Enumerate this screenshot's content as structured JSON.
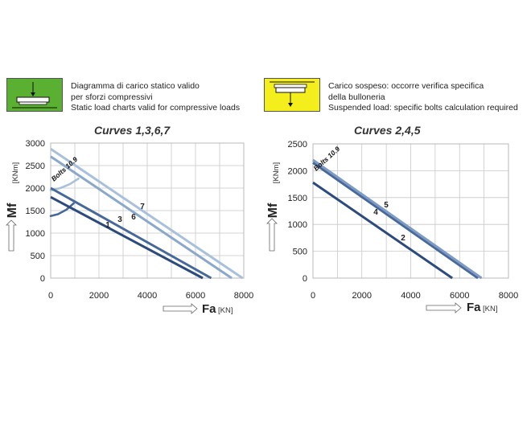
{
  "legend": {
    "green": {
      "line1": "Diagramma di carico statico valido",
      "line2": "per sforzi compressivi",
      "line3": "Static load charts valid for compressive loads",
      "color": "#5ab030"
    },
    "yellow": {
      "line1": "Carico sospeso: occorre verifica specifica",
      "line2": "della bulloneria",
      "line3": "Suspended load:  specific bolts calculation required",
      "color": "#f4ee1c"
    }
  },
  "chart_data": [
    {
      "type": "line",
      "title": "Curves 1,3,6,7",
      "ylabel": "Mf",
      "yunit": "[KNm]",
      "xlabel": "Fa",
      "xunit": "[KN]",
      "xlim": [
        0,
        8000
      ],
      "ylim": [
        0,
        3000
      ],
      "xticks": [
        0,
        2000,
        4000,
        6000,
        8000
      ],
      "yticks": [
        0,
        500,
        1000,
        1500,
        2000,
        2500,
        3000
      ],
      "xtick_labels": [
        "0",
        "2000",
        "4000",
        "6000",
        "8000"
      ],
      "ytick_labels": [
        "0",
        "500",
        "1000",
        "1500",
        "2000",
        "2500",
        "3000"
      ],
      "grid": true,
      "annotation": "Bolts 10.9",
      "series": [
        {
          "name": "1",
          "color": "#2c4b7c",
          "x": [
            0,
            6300
          ],
          "y": [
            1800,
            0
          ]
        },
        {
          "name": "3",
          "color": "#46699a",
          "x": [
            0,
            6650
          ],
          "y": [
            2000,
            0
          ]
        },
        {
          "name": "6",
          "color": "#8aa8cc",
          "x": [
            0,
            7500
          ],
          "y": [
            2700,
            0
          ]
        },
        {
          "name": "7",
          "color": "#a8c0dc",
          "x": [
            0,
            7950
          ],
          "y": [
            2870,
            0
          ]
        }
      ],
      "bolts_curves": [
        {
          "color": "#46699a",
          "x": [
            0,
            300,
            650,
            950
          ],
          "y": [
            1380,
            1420,
            1520,
            1660
          ]
        },
        {
          "color": "#a8c0dc",
          "x": [
            0,
            400,
            800,
            1150
          ],
          "y": [
            1950,
            2000,
            2090,
            2210
          ]
        }
      ]
    },
    {
      "type": "line",
      "title": "Curves 2,4,5",
      "ylabel": "Mf",
      "yunit": "[KNm]",
      "xlabel": "Fa",
      "xunit": "[KN]",
      "xlim": [
        0,
        8000
      ],
      "ylim": [
        0,
        2500
      ],
      "xticks": [
        0,
        2000,
        4000,
        6000,
        8000
      ],
      "yticks": [
        0,
        500,
        1000,
        1500,
        2000,
        2500
      ],
      "xtick_labels": [
        "0",
        "2000",
        "4000",
        "6000",
        "8000"
      ],
      "ytick_labels": [
        "0",
        "500",
        "1000",
        "1500",
        "2000",
        "2500"
      ],
      "grid": true,
      "annotation": "Bolts 10.9",
      "series": [
        {
          "name": "2",
          "color": "#2c4b7c",
          "x": [
            0,
            5700
          ],
          "y": [
            1780,
            0
          ]
        },
        {
          "name": "4",
          "color": "#46699a",
          "x": [
            0,
            6750
          ],
          "y": [
            2150,
            0
          ]
        },
        {
          "name": "5",
          "color": "#7d9bc4",
          "x": [
            0,
            6900
          ],
          "y": [
            2200,
            0
          ]
        }
      ],
      "bolts_curves": []
    }
  ]
}
